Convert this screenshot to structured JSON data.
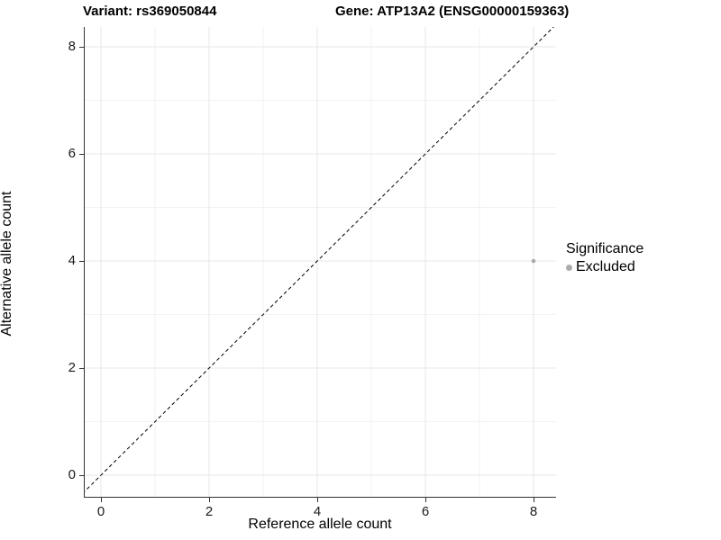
{
  "titles": {
    "left": "Variant: rs369050844",
    "right": "Gene: ATP13A2 (ENSG00000159363)"
  },
  "legend": {
    "title": "Significance",
    "items": [
      {
        "label": "Excluded",
        "color": "#ababab"
      }
    ]
  },
  "colors": {
    "background": "#ffffff",
    "grid_major": "#e7e7e7",
    "grid_minor": "#f2f2f2",
    "axis_line": "#333333",
    "tick_text": "#1a1a1a",
    "reference_line": "#000000",
    "point": "#ababab"
  },
  "chart_data": {
    "type": "scatter",
    "title_left": "Variant: rs369050844",
    "title_right": "Gene: ATP13A2 (ENSG00000159363)",
    "xlabel": "Reference allele count",
    "ylabel": "Alternative allele count",
    "series": [
      {
        "name": "Excluded",
        "color": "#ababab",
        "points": [
          {
            "x": 8,
            "y": 4
          }
        ]
      }
    ],
    "reference_line": {
      "equation": "y = x",
      "style": "dashed",
      "color": "#000000"
    },
    "x_ticks": [
      0,
      2,
      4,
      6,
      8
    ],
    "y_ticks": [
      0,
      2,
      4,
      6,
      8
    ],
    "x_minor_ticks": [
      1,
      3,
      5,
      7
    ],
    "y_minor_ticks": [
      1,
      3,
      5,
      7
    ],
    "xlim": [
      -0.317,
      8.417
    ],
    "ylim": [
      -0.42,
      8.37
    ],
    "grid": true,
    "legend_position": "right"
  }
}
